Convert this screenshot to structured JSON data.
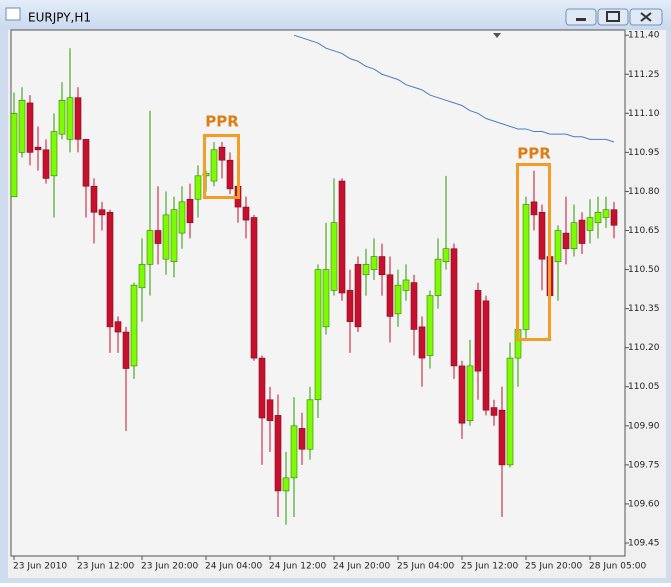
{
  "window": {
    "title": "EURJPY,H1"
  },
  "chart_data": {
    "type": "candlestick",
    "categories": [
      "23 Jun 2010",
      null,
      null,
      null,
      null,
      null,
      null,
      null,
      "23 Jun 12:00",
      null,
      null,
      null,
      null,
      null,
      null,
      null,
      "23 Jun 20:00",
      null,
      null,
      null,
      null,
      null,
      null,
      null,
      "24 Jun 04:00",
      null,
      null,
      null,
      null,
      null,
      null,
      null,
      "24 Jun 12:00",
      null,
      null,
      null,
      null,
      null,
      null,
      null,
      "24 Jun 20:00",
      null,
      null,
      null,
      null,
      null,
      null,
      null,
      "25 Jun 04:00",
      null,
      null,
      null,
      null,
      null,
      null,
      null,
      "25 Jun 12:00",
      null,
      null,
      null,
      null,
      null,
      null,
      null,
      "25 Jun 20:00",
      null,
      null,
      null,
      null,
      null,
      null,
      null,
      "28 Jun 05:00",
      null,
      null,
      null
    ],
    "open": [
      110.78,
      110.95,
      111.14,
      110.97,
      110.96,
      110.86,
      111.02,
      111.0,
      111.16,
      111.0,
      110.82,
      110.73,
      110.72,
      110.3,
      110.26,
      110.13,
      110.43,
      110.52,
      110.65,
      110.54,
      110.53,
      110.64,
      110.77,
      110.77,
      110.86,
      110.84,
      110.97,
      110.92,
      110.82,
      110.74,
      110.7,
      110.16,
      110.0,
      109.94,
      109.65,
      109.7,
      109.89,
      109.81,
      110.0,
      110.28,
      110.42,
      110.84,
      110.42,
      110.52,
      110.48,
      110.5,
      110.55,
      110.48,
      110.33,
      110.42,
      110.45,
      110.28,
      110.17,
      110.4,
      110.53,
      110.58,
      110.13,
      109.92,
      110.42,
      110.38,
      109.97,
      109.96,
      109.75,
      110.16,
      110.27,
      110.76,
      110.72,
      110.55,
      110.53,
      110.64,
      110.58,
      110.69,
      110.65,
      110.68,
      110.7,
      110.73
    ],
    "high": [
      111.18,
      111.2,
      111.17,
      111.05,
      111.0,
      111.1,
      111.22,
      111.35,
      111.2,
      111.0,
      110.85,
      110.76,
      110.73,
      110.32,
      110.28,
      110.45,
      110.62,
      111.11,
      110.82,
      110.8,
      110.78,
      110.82,
      110.83,
      110.9,
      110.88,
      110.99,
      110.99,
      110.95,
      110.87,
      110.78,
      110.71,
      110.17,
      110.05,
      110.02,
      109.8,
      110.01,
      109.95,
      110.05,
      110.52,
      110.68,
      110.85,
      110.85,
      110.5,
      110.55,
      110.58,
      110.62,
      110.6,
      110.55,
      110.5,
      110.52,
      110.48,
      110.32,
      110.42,
      110.62,
      110.86,
      110.6,
      110.15,
      110.23,
      110.45,
      110.4,
      110.0,
      110.05,
      110.22,
      110.27,
      110.78,
      110.88,
      110.75,
      110.58,
      110.67,
      110.78,
      110.75,
      110.72,
      110.77,
      110.78,
      110.78,
      110.76
    ],
    "low": [
      110.78,
      110.93,
      110.9,
      110.88,
      110.83,
      110.7,
      111.0,
      110.95,
      110.95,
      110.7,
      110.6,
      110.65,
      110.18,
      110.18,
      109.88,
      110.08,
      110.3,
      110.4,
      110.52,
      110.48,
      110.47,
      110.58,
      110.62,
      110.7,
      110.8,
      110.82,
      110.85,
      110.79,
      110.68,
      110.62,
      110.15,
      109.75,
      109.8,
      109.55,
      109.52,
      109.55,
      109.75,
      109.77,
      109.93,
      110.25,
      110.4,
      110.38,
      110.18,
      110.26,
      110.4,
      110.46,
      110.4,
      110.22,
      110.28,
      110.38,
      110.17,
      110.05,
      110.12,
      110.35,
      110.5,
      110.08,
      109.85,
      109.9,
      110.0,
      109.94,
      109.9,
      109.55,
      109.74,
      110.05,
      110.23,
      110.65,
      110.42,
      110.34,
      110.38,
      110.52,
      110.55,
      110.56,
      110.6,
      110.62,
      110.66,
      110.62
    ],
    "close": [
      111.1,
      111.15,
      110.95,
      110.96,
      110.85,
      111.03,
      111.15,
      111.16,
      111.0,
      110.82,
      110.72,
      110.71,
      110.28,
      110.26,
      110.12,
      110.44,
      110.52,
      110.65,
      110.6,
      110.71,
      110.73,
      110.76,
      110.68,
      110.86,
      110.87,
      110.96,
      110.92,
      110.81,
      110.74,
      110.69,
      110.16,
      109.93,
      109.92,
      109.65,
      109.7,
      109.9,
      109.81,
      110.0,
      110.5,
      110.5,
      110.68,
      110.41,
      110.3,
      110.28,
      110.52,
      110.55,
      110.48,
      110.32,
      110.44,
      110.46,
      110.27,
      110.16,
      110.4,
      110.54,
      110.58,
      110.13,
      109.91,
      110.13,
      110.11,
      109.96,
      109.94,
      109.75,
      110.16,
      110.27,
      110.75,
      110.71,
      110.54,
      110.4,
      110.65,
      110.58,
      110.68,
      110.6,
      110.7,
      110.72,
      110.73,
      110.67
    ],
    "up_color": "#7cfc00",
    "down_color": "#c8102e",
    "line": {
      "color": "#4a7cc9",
      "values": [
        null,
        null,
        null,
        null,
        null,
        null,
        null,
        null,
        null,
        null,
        null,
        null,
        null,
        null,
        null,
        null,
        null,
        null,
        null,
        null,
        null,
        null,
        null,
        null,
        null,
        null,
        null,
        null,
        null,
        null,
        null,
        null,
        null,
        null,
        null,
        111.4,
        111.39,
        111.38,
        111.37,
        111.35,
        111.34,
        111.33,
        111.31,
        111.3,
        111.28,
        111.27,
        111.25,
        111.24,
        111.23,
        111.21,
        111.2,
        111.19,
        111.17,
        111.16,
        111.15,
        111.14,
        111.13,
        111.11,
        111.1,
        111.08,
        111.07,
        111.06,
        111.05,
        111.04,
        111.04,
        111.03,
        111.03,
        111.02,
        111.02,
        111.02,
        111.01,
        111.01,
        111.0,
        111.0,
        111.0,
        110.99
      ]
    },
    "annotations": [
      "PPR",
      "PPR"
    ],
    "ylim": [
      109.4,
      111.42
    ],
    "yticks": [
      {
        "value": 111.4,
        "label": "111.40"
      },
      111.25,
      {
        "value": 111.1,
        "label": "111.10"
      },
      110.95,
      {
        "value": 110.8,
        "label": "110.80"
      },
      110.65,
      {
        "value": 110.5,
        "label": "110.50"
      },
      110.35,
      {
        "value": 110.2,
        "label": "110.20"
      },
      110.05,
      {
        "value": 109.9,
        "label": "109.90"
      },
      109.75,
      {
        "value": 109.6,
        "label": "109.60"
      },
      109.45
    ]
  }
}
